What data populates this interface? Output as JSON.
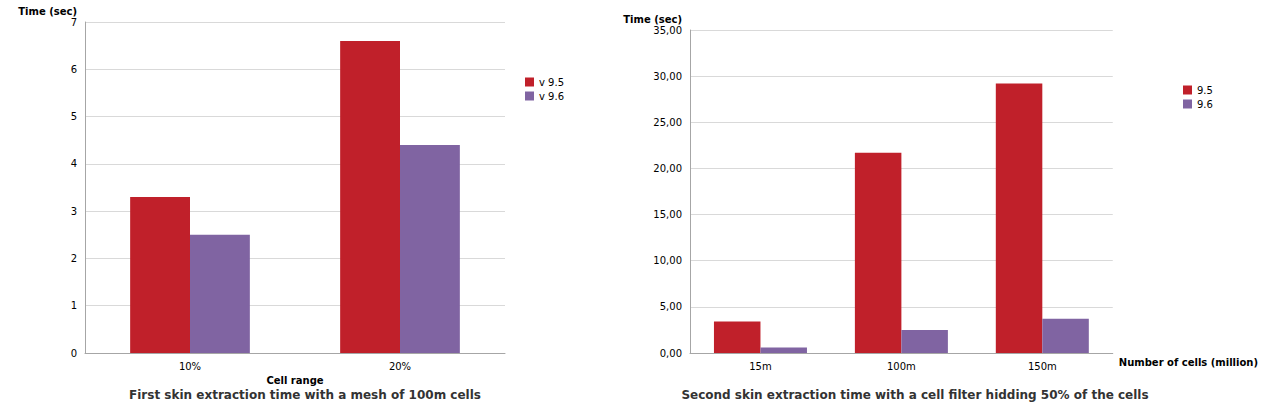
{
  "chart_data": [
    {
      "type": "bar",
      "title": "First skin extraction time with a mesh of 100m cells",
      "x_label": "Cell range",
      "y_label": "Time (sec)",
      "categories": [
        "10%",
        "20%"
      ],
      "series": [
        {
          "name": "v 9.5",
          "color": "#c0202a",
          "values": [
            3.3,
            6.6
          ]
        },
        {
          "name": "v 9.6",
          "color": "#8064a2",
          "values": [
            2.5,
            4.4
          ]
        }
      ],
      "ylim": [
        0,
        7
      ],
      "yticks": [
        0,
        1,
        2,
        3,
        4,
        5,
        6,
        7
      ],
      "grid": true,
      "legend": "right"
    },
    {
      "type": "bar",
      "title": "Second skin extraction time with a cell filter hidding 50% of the cells",
      "x_label": "Number of cells (million)",
      "y_label": "Time (sec)",
      "categories": [
        "15m",
        "100m",
        "150m"
      ],
      "series": [
        {
          "name": "9.5",
          "color": "#c0202a",
          "values": [
            3.4,
            21.7,
            29.2
          ]
        },
        {
          "name": "9.6",
          "color": "#8064a2",
          "values": [
            0.6,
            2.5,
            3.7
          ]
        }
      ],
      "ylim": [
        0,
        35
      ],
      "yticks": [
        {
          "value": 0,
          "label": "0,00"
        },
        {
          "value": 5,
          "label": "5,00"
        },
        {
          "value": 10,
          "label": "10,00"
        },
        {
          "value": 15,
          "label": "15,00"
        },
        {
          "value": 20,
          "label": "20,00"
        },
        {
          "value": 25,
          "label": "25,00"
        },
        {
          "value": 30,
          "label": "30,00"
        },
        {
          "value": 35,
          "label": "35,00"
        }
      ],
      "grid": true,
      "legend": "right"
    }
  ]
}
